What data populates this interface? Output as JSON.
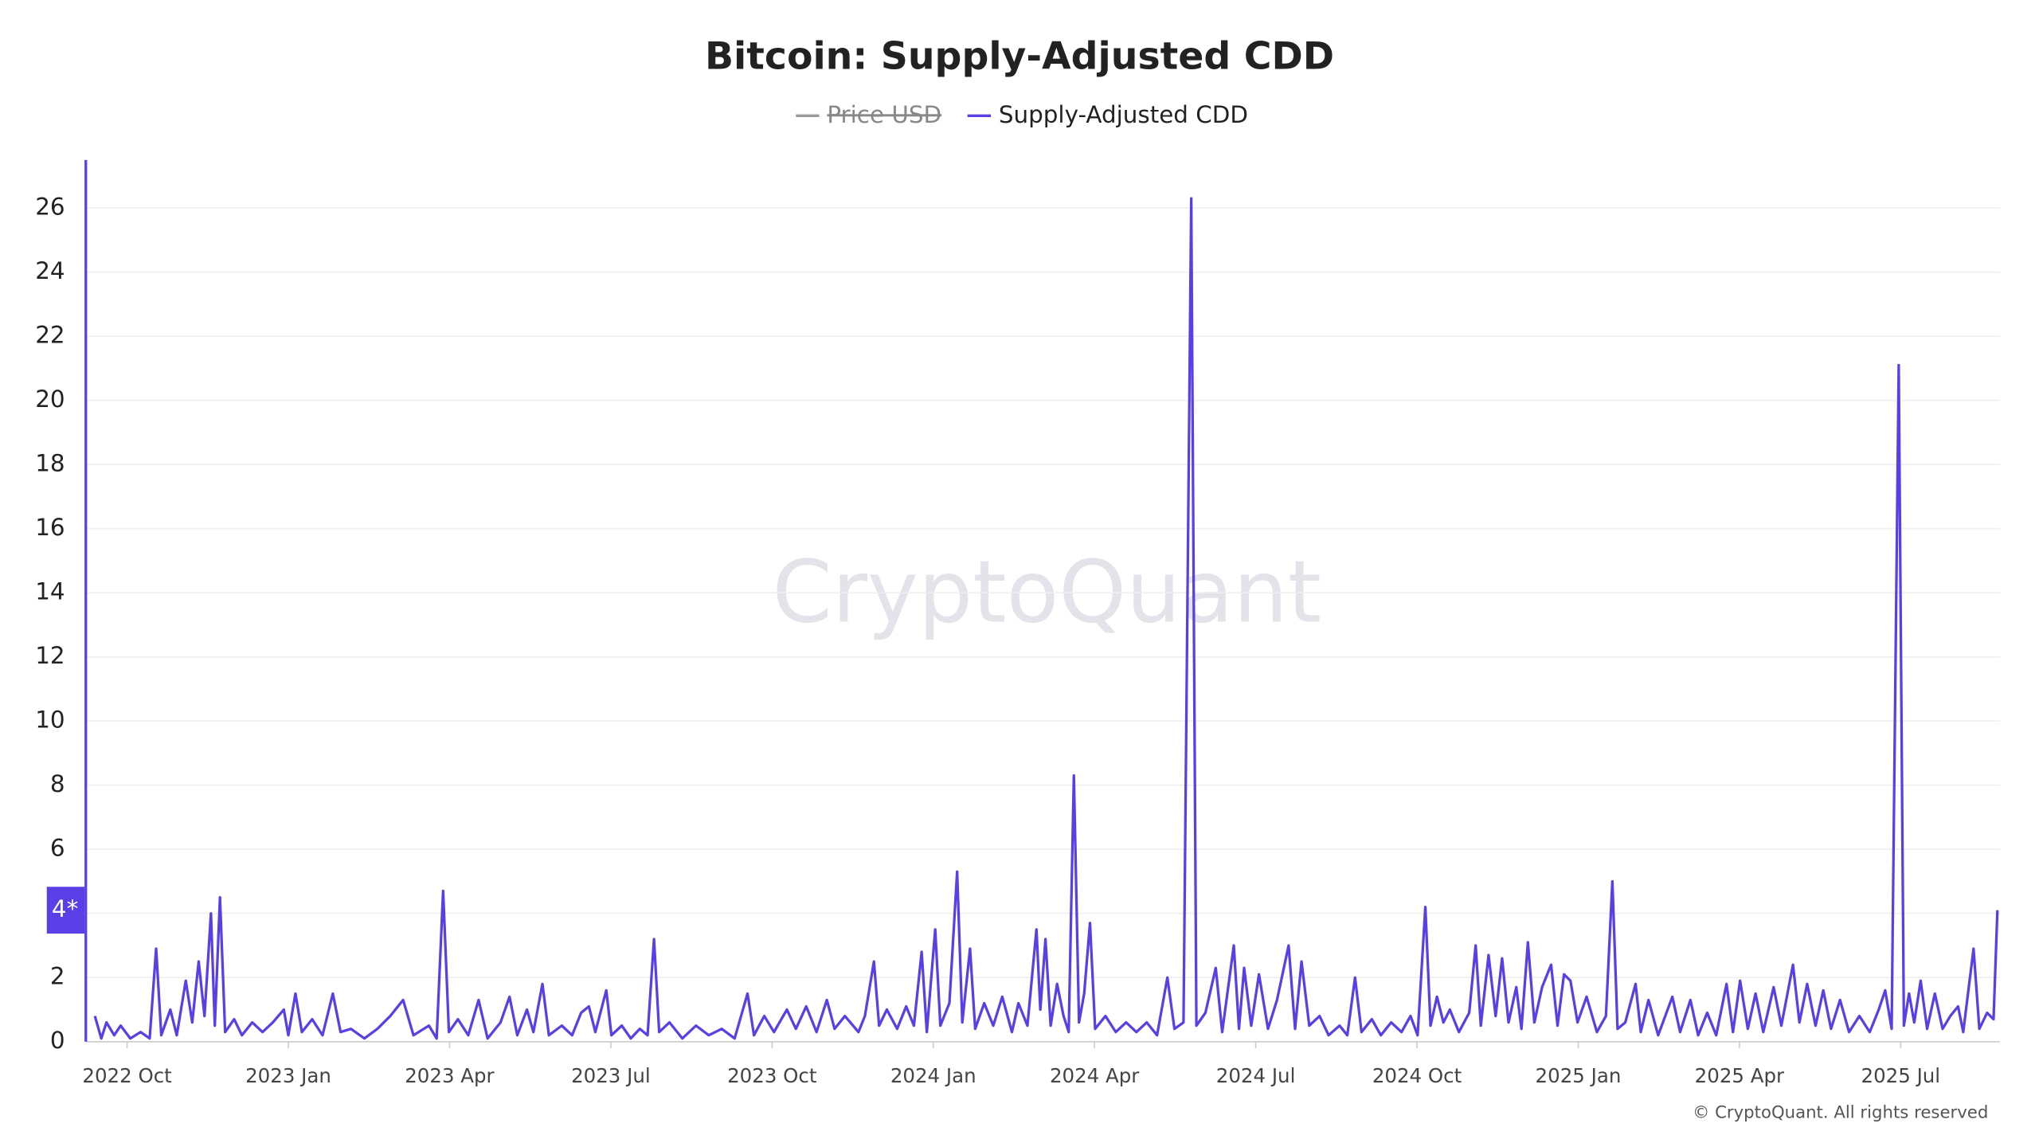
{
  "chart_data": {
    "type": "line",
    "title": "Bitcoin: Supply-Adjusted CDD",
    "watermark": "CryptoQuant",
    "copyright": "© CryptoQuant. All rights reserved",
    "hidden_series": [
      {
        "name": "Price USD",
        "color": "#999999"
      }
    ],
    "current_value": {
      "value": 4.1,
      "label": "4*"
    },
    "xlim": [
      2022.686,
      2025.654
    ],
    "xticks": [
      {
        "value": 2022.75,
        "label": "2022 Oct"
      },
      {
        "value": 2023.0,
        "label": "2023 Jan"
      },
      {
        "value": 2023.25,
        "label": "2023 Apr"
      },
      {
        "value": 2023.5,
        "label": "2023 Jul"
      },
      {
        "value": 2023.75,
        "label": "2023 Oct"
      },
      {
        "value": 2024.0,
        "label": "2024 Jan"
      },
      {
        "value": 2024.25,
        "label": "2024 Apr"
      },
      {
        "value": 2024.5,
        "label": "2024 Jul"
      },
      {
        "value": 2024.75,
        "label": "2024 Oct"
      },
      {
        "value": 2025.0,
        "label": "2025 Jan"
      },
      {
        "value": 2025.25,
        "label": "2025 Apr"
      },
      {
        "value": 2025.5,
        "label": "2025 Jul"
      }
    ],
    "ylim": [
      0,
      27.5
    ],
    "yticks": [
      0,
      2,
      4,
      6,
      8,
      10,
      12,
      14,
      16,
      18,
      20,
      22,
      24,
      26
    ],
    "grid": true,
    "x": [
      2022.7,
      2022.71,
      2022.718,
      2022.73,
      2022.74,
      2022.755,
      2022.771,
      2022.785,
      2022.795,
      2022.803,
      2022.817,
      2022.827,
      2022.841,
      2022.851,
      2022.861,
      2022.87,
      2022.88,
      2022.886,
      2022.894,
      2022.902,
      2022.916,
      2022.928,
      2022.944,
      2022.96,
      2022.976,
      2022.993,
      2023.0,
      2023.011,
      2023.021,
      2023.037,
      2023.053,
      2023.069,
      2023.081,
      2023.097,
      2023.118,
      2023.138,
      2023.158,
      2023.178,
      2023.194,
      2023.218,
      2023.23,
      2023.24,
      2023.249,
      2023.263,
      2023.279,
      2023.295,
      2023.309,
      2023.329,
      2023.343,
      2023.355,
      2023.37,
      2023.38,
      2023.394,
      2023.404,
      2023.424,
      2023.44,
      2023.454,
      2023.466,
      2023.476,
      2023.493,
      2023.501,
      2023.517,
      2023.531,
      2023.545,
      2023.557,
      2023.567,
      2023.575,
      2023.591,
      2023.611,
      2023.632,
      2023.652,
      2023.672,
      2023.692,
      2023.712,
      2023.722,
      2023.738,
      2023.753,
      2023.773,
      2023.787,
      2023.803,
      2023.819,
      2023.835,
      2023.847,
      2023.863,
      2023.884,
      2023.894,
      2023.908,
      2023.916,
      2023.928,
      2023.944,
      2023.958,
      2023.97,
      2023.982,
      2023.99,
      2024.003,
      2024.011,
      2024.025,
      2024.037,
      2024.045,
      2024.057,
      2024.065,
      2024.079,
      2024.093,
      2024.107,
      2024.122,
      2024.132,
      2024.146,
      2024.16,
      2024.166,
      2024.174,
      2024.182,
      2024.192,
      2024.202,
      2024.21,
      2024.218,
      2024.226,
      2024.234,
      2024.243,
      2024.251,
      2024.267,
      2024.283,
      2024.299,
      2024.315,
      2024.331,
      2024.347,
      2024.363,
      2024.374,
      2024.388,
      2024.4,
      2024.408,
      2024.422,
      2024.438,
      2024.448,
      2024.466,
      2024.474,
      2024.482,
      2024.493,
      2024.505,
      2024.519,
      2024.533,
      2024.551,
      2024.561,
      2024.571,
      2024.583,
      2024.599,
      2024.613,
      2024.63,
      2024.642,
      2024.654,
      2024.664,
      2024.68,
      2024.694,
      2024.71,
      2024.726,
      2024.74,
      2024.751,
      2024.763,
      2024.771,
      2024.781,
      2024.791,
      2024.801,
      2024.815,
      2024.831,
      2024.841,
      2024.849,
      2024.861,
      2024.872,
      2024.882,
      2024.892,
      2024.904,
      2024.912,
      2024.922,
      2024.932,
      2024.944,
      2024.958,
      2024.968,
      2024.978,
      2024.988,
      2024.999,
      2025.013,
      2025.029,
      2025.043,
      2025.053,
      2025.061,
      2025.073,
      2025.089,
      2025.097,
      2025.109,
      2025.124,
      2025.146,
      2025.158,
      2025.174,
      2025.186,
      2025.2,
      2025.214,
      2025.23,
      2025.24,
      2025.251,
      2025.263,
      2025.275,
      2025.287,
      2025.303,
      2025.315,
      2025.333,
      2025.343,
      2025.355,
      2025.368,
      2025.38,
      2025.392,
      2025.406,
      2025.42,
      2025.436,
      2025.452,
      2025.466,
      2025.476,
      2025.486,
      2025.497,
      2025.505,
      2025.513,
      2025.521,
      2025.531,
      2025.541,
      2025.553,
      2025.565,
      2025.577,
      2025.589,
      2025.597,
      2025.613,
      2025.622,
      2025.634,
      2025.644,
      2025.65
    ],
    "series": [
      {
        "name": "Supply-Adjusted CDD",
        "color": "#5b3fe6",
        "values": [
          0.8,
          0.1,
          0.6,
          0.2,
          0.5,
          0.1,
          0.3,
          0.1,
          2.9,
          0.2,
          1.0,
          0.2,
          1.9,
          0.6,
          2.5,
          0.8,
          4.0,
          0.5,
          4.5,
          0.3,
          0.7,
          0.2,
          0.6,
          0.3,
          0.6,
          1.0,
          0.2,
          1.5,
          0.3,
          0.7,
          0.2,
          1.5,
          0.3,
          0.4,
          0.1,
          0.4,
          0.8,
          1.3,
          0.2,
          0.5,
          0.1,
          4.7,
          0.3,
          0.7,
          0.2,
          1.3,
          0.1,
          0.6,
          1.4,
          0.2,
          1.0,
          0.3,
          1.8,
          0.2,
          0.5,
          0.2,
          0.9,
          1.1,
          0.3,
          1.6,
          0.2,
          0.5,
          0.1,
          0.4,
          0.2,
          3.2,
          0.3,
          0.6,
          0.1,
          0.5,
          0.2,
          0.4,
          0.1,
          1.5,
          0.2,
          0.8,
          0.3,
          1.0,
          0.4,
          1.1,
          0.3,
          1.3,
          0.4,
          0.8,
          0.3,
          0.8,
          2.5,
          0.5,
          1.0,
          0.4,
          1.1,
          0.5,
          2.8,
          0.3,
          3.5,
          0.5,
          1.2,
          5.3,
          0.6,
          2.9,
          0.4,
          1.2,
          0.5,
          1.4,
          0.3,
          1.2,
          0.5,
          3.5,
          1.0,
          3.2,
          0.5,
          1.8,
          0.8,
          0.3,
          8.3,
          0.6,
          1.5,
          3.7,
          0.4,
          0.8,
          0.3,
          0.6,
          0.3,
          0.6,
          0.2,
          2.0,
          0.4,
          0.6,
          26.3,
          0.5,
          0.9,
          2.3,
          0.3,
          3.0,
          0.4,
          2.3,
          0.5,
          2.1,
          0.4,
          1.3,
          3.0,
          0.4,
          2.5,
          0.5,
          0.8,
          0.2,
          0.5,
          0.2,
          2.0,
          0.3,
          0.7,
          0.2,
          0.6,
          0.3,
          0.8,
          0.2,
          4.2,
          0.5,
          1.4,
          0.6,
          1.0,
          0.3,
          0.9,
          3.0,
          0.5,
          2.7,
          0.8,
          2.6,
          0.6,
          1.7,
          0.4,
          3.1,
          0.6,
          1.7,
          2.4,
          0.5,
          2.1,
          1.9,
          0.6,
          1.4,
          0.3,
          0.8,
          5.0,
          0.4,
          0.6,
          1.8,
          0.3,
          1.3,
          0.2,
          1.4,
          0.3,
          1.3,
          0.2,
          0.9,
          0.2,
          1.8,
          0.3,
          1.9,
          0.4,
          1.5,
          0.3,
          1.7,
          0.5,
          2.4,
          0.6,
          1.8,
          0.5,
          1.6,
          0.4,
          1.3,
          0.3,
          0.8,
          0.3,
          1.0,
          1.6,
          0.4,
          21.1,
          0.5,
          1.5,
          0.6,
          1.9,
          0.4,
          1.5,
          0.4,
          0.8,
          1.1,
          0.3,
          2.9,
          0.4,
          0.9,
          0.7,
          4.1
        ]
      }
    ]
  }
}
